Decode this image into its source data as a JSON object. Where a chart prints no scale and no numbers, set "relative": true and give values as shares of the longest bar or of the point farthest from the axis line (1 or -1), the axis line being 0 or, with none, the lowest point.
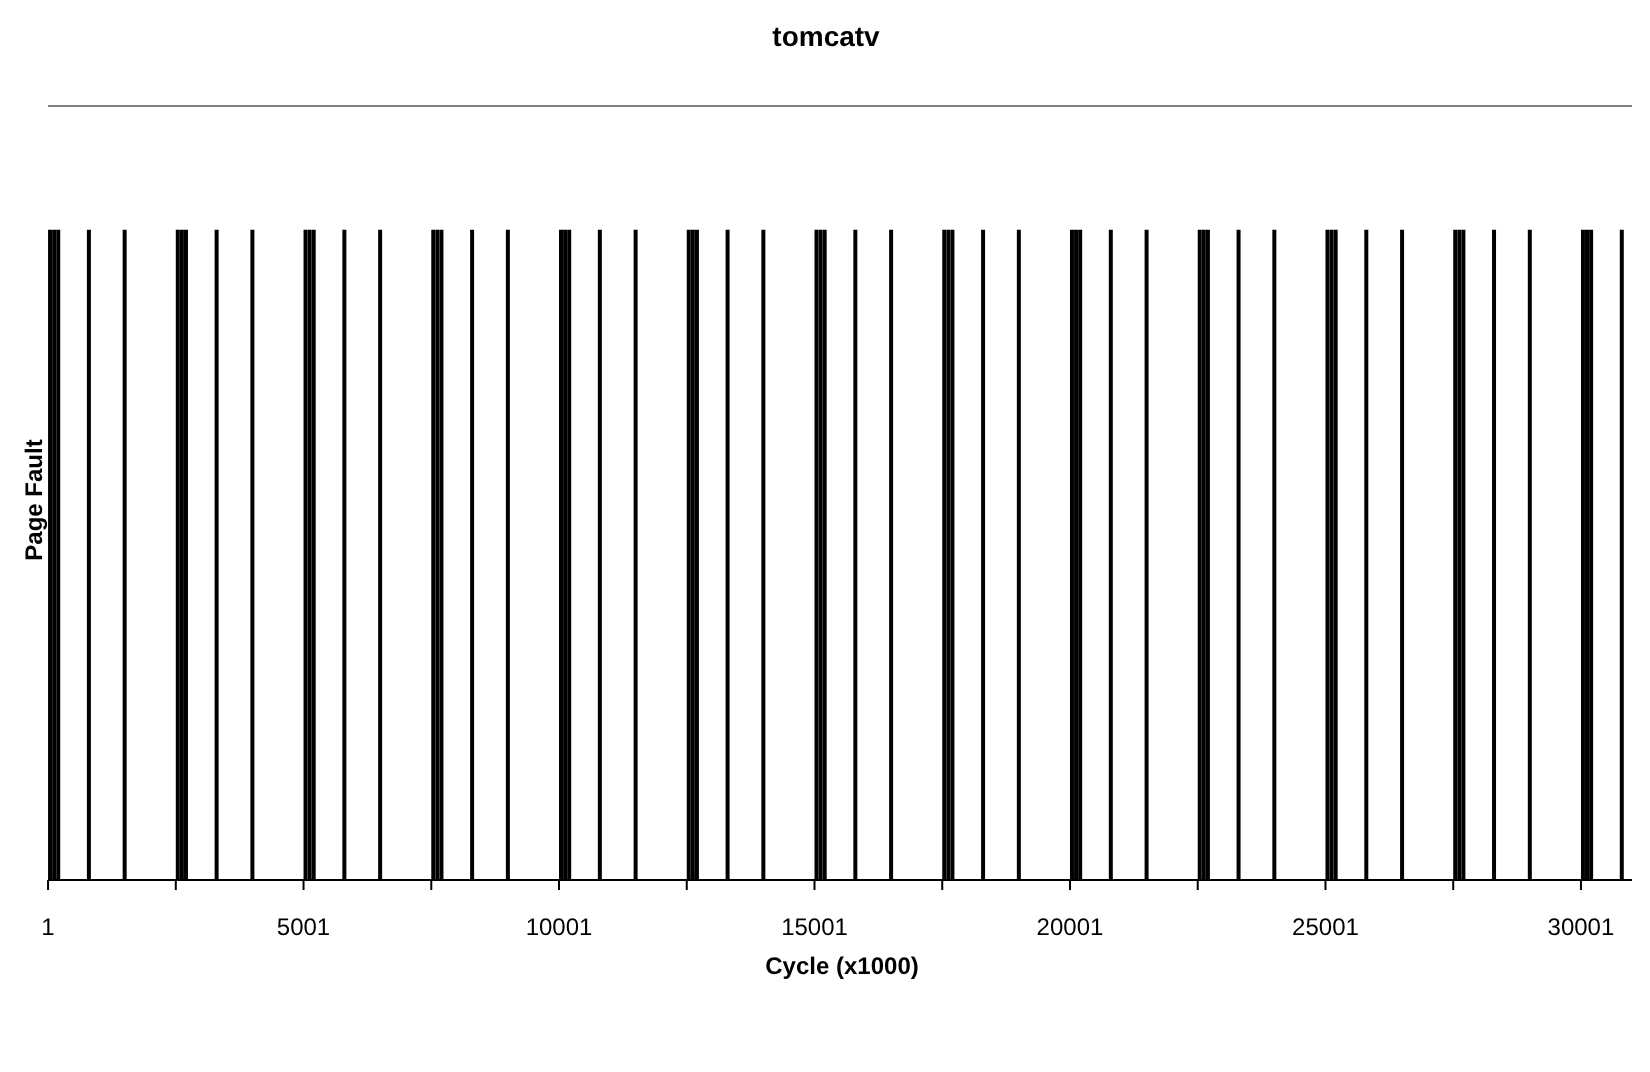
{
  "chart_data": {
    "type": "bar",
    "title": "tomcatv",
    "xlabel": "Cycle  (x1000)",
    "ylabel": "Page Fault",
    "relative": true,
    "color": "#000000",
    "x": [
      41,
      121,
      201,
      801,
      1501,
      2541,
      2621,
      2701,
      3301,
      4001,
      5041,
      5121,
      5201,
      5801,
      6501,
      7541,
      7621,
      7701,
      8301,
      9001,
      10041,
      10121,
      10201,
      10801,
      11501,
      12541,
      12621,
      12701,
      13301,
      14001,
      15041,
      15121,
      15201,
      15801,
      16501,
      17541,
      17621,
      17701,
      18301,
      19001,
      20041,
      20121,
      20201,
      20801,
      21501,
      22541,
      22621,
      22701,
      23301,
      24001,
      25041,
      25121,
      25201,
      25801,
      26501,
      27541,
      27621,
      27701,
      28301,
      29001,
      30041,
      30121,
      30201,
      30801
    ],
    "values": [
      1,
      1,
      1,
      1,
      1,
      1,
      1,
      1,
      1,
      1,
      1,
      1,
      1,
      1,
      1,
      1,
      1,
      1,
      1,
      1,
      1,
      1,
      1,
      1,
      1,
      1,
      1,
      1,
      1,
      1,
      1,
      1,
      1,
      1,
      1,
      1,
      1,
      1,
      1,
      1,
      1,
      1,
      1,
      1,
      1,
      1,
      1,
      1,
      1,
      1,
      1,
      1,
      1,
      1,
      1,
      1,
      1,
      1,
      1,
      1,
      1,
      1,
      1,
      1
    ],
    "xlim": [
      0,
      31000
    ],
    "xticks": [
      1,
      {
        "value": 2501,
        "label": null
      },
      5001,
      {
        "value": 7501,
        "label": null
      },
      10001,
      {
        "value": 12501,
        "label": null
      },
      15001,
      {
        "value": 17501,
        "label": null
      },
      20001,
      {
        "value": 22501,
        "label": null
      },
      25001,
      {
        "value": 27501,
        "label": null
      },
      30001
    ],
    "grid": false,
    "legend": false
  }
}
